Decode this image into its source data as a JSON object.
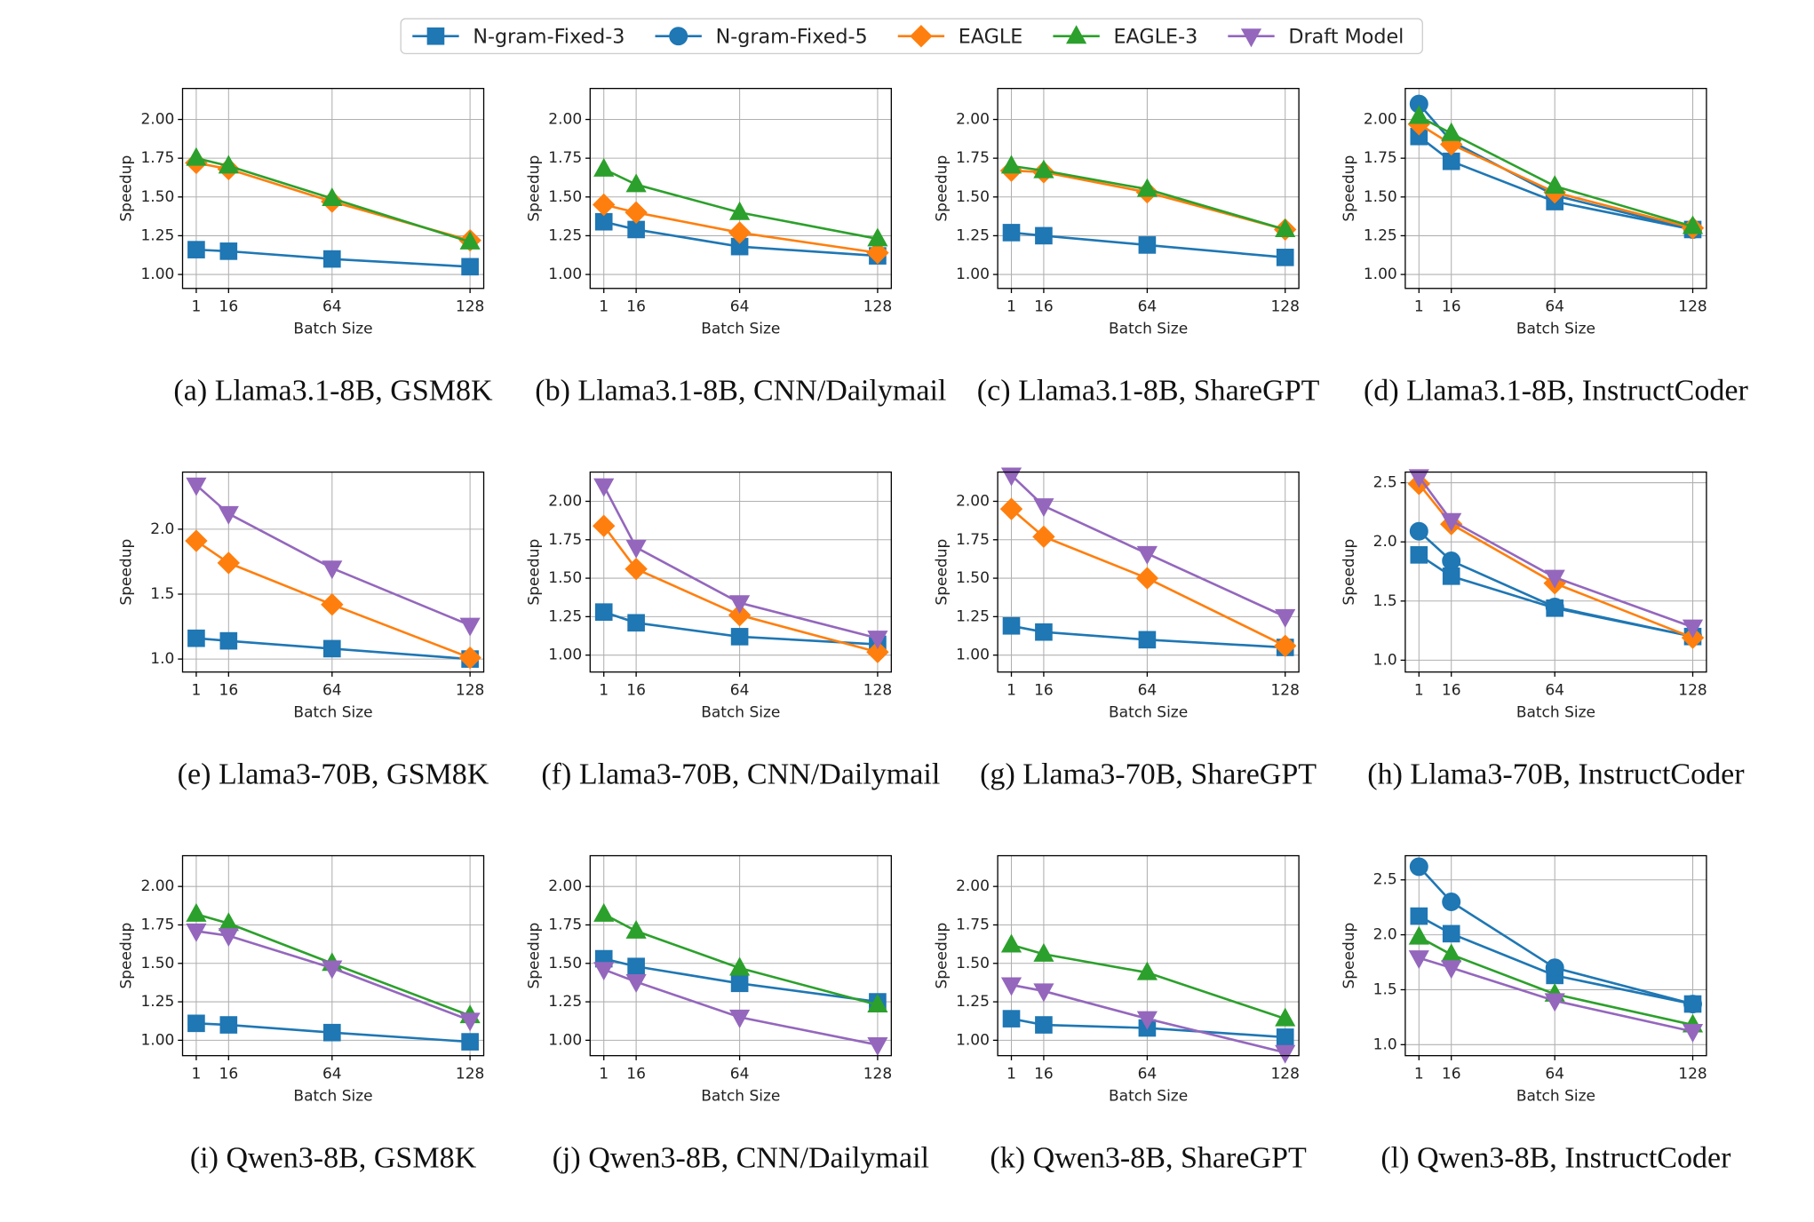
{
  "legend": {
    "entries": [
      {
        "name": "N-gram-Fixed-3",
        "color": "#1f77b4",
        "marker": "square"
      },
      {
        "name": "N-gram-Fixed-5",
        "color": "#1f77b4",
        "marker": "circle"
      },
      {
        "name": "EAGLE",
        "color": "#ff7f0e",
        "marker": "diamond"
      },
      {
        "name": "EAGLE-3",
        "color": "#2ca02c",
        "marker": "triangle-up"
      },
      {
        "name": "Draft Model",
        "color": "#9467bd",
        "marker": "triangle-down"
      }
    ]
  },
  "chart_data": [
    {
      "type": "line",
      "title": "(a) Llama3.1-8B, GSM8K",
      "x_label": "Batch Size",
      "y_label": "Speedup",
      "grid": true,
      "x": [
        1,
        16,
        64,
        128
      ],
      "xlim": [
        -5.35,
        134.35
      ],
      "xticks": [
        1,
        16,
        64,
        128
      ],
      "ylim": [
        0.91,
        2.2
      ],
      "yticks": [
        {
          "value": 1,
          "label": "1.00"
        },
        1.25,
        {
          "value": 1.5,
          "label": "1.50"
        },
        1.75,
        {
          "value": 2,
          "label": "2.00"
        }
      ],
      "series": [
        {
          "name": "N-gram-Fixed-3",
          "values": [
            1.16,
            1.15,
            1.1,
            1.05
          ]
        },
        {
          "name": "EAGLE",
          "values": [
            1.72,
            1.68,
            1.47,
            1.22
          ]
        },
        {
          "name": "EAGLE-3",
          "values": [
            1.75,
            1.7,
            1.49,
            1.21
          ]
        }
      ]
    },
    {
      "type": "line",
      "title": "(b) Llama3.1-8B, CNN/Dailymail",
      "x_label": "Batch Size",
      "y_label": "Speedup",
      "grid": true,
      "x": [
        1,
        16,
        64,
        128
      ],
      "xlim": [
        -5.35,
        134.35
      ],
      "xticks": [
        1,
        16,
        64,
        128
      ],
      "ylim": [
        0.91,
        2.2
      ],
      "yticks": [
        {
          "value": 1,
          "label": "1.00"
        },
        1.25,
        {
          "value": 1.5,
          "label": "1.50"
        },
        1.75,
        {
          "value": 2,
          "label": "2.00"
        }
      ],
      "series": [
        {
          "name": "N-gram-Fixed-3",
          "values": [
            1.34,
            1.29,
            1.18,
            1.12
          ]
        },
        {
          "name": "EAGLE",
          "values": [
            1.45,
            1.4,
            1.27,
            1.14
          ]
        },
        {
          "name": "EAGLE-3",
          "values": [
            1.68,
            1.58,
            1.4,
            1.23
          ]
        }
      ]
    },
    {
      "type": "line",
      "title": "(c) Llama3.1-8B, ShareGPT",
      "x_label": "Batch Size",
      "y_label": "Speedup",
      "grid": true,
      "x": [
        1,
        16,
        64,
        128
      ],
      "xlim": [
        -5.35,
        134.35
      ],
      "xticks": [
        1,
        16,
        64,
        128
      ],
      "ylim": [
        0.91,
        2.2
      ],
      "yticks": [
        {
          "value": 1,
          "label": "1.00"
        },
        1.25,
        {
          "value": 1.5,
          "label": "1.50"
        },
        1.75,
        {
          "value": 2,
          "label": "2.00"
        }
      ],
      "series": [
        {
          "name": "N-gram-Fixed-3",
          "values": [
            1.27,
            1.25,
            1.19,
            1.11
          ]
        },
        {
          "name": "EAGLE",
          "values": [
            1.67,
            1.66,
            1.53,
            1.29
          ]
        },
        {
          "name": "EAGLE-3",
          "values": [
            1.7,
            1.67,
            1.55,
            1.29
          ]
        }
      ]
    },
    {
      "type": "line",
      "title": "(d) Llama3.1-8B, InstructCoder",
      "x_label": "Batch Size",
      "y_label": "Speedup",
      "grid": true,
      "x": [
        1,
        16,
        64,
        128
      ],
      "xlim": [
        -5.35,
        134.35
      ],
      "xticks": [
        1,
        16,
        64,
        128
      ],
      "ylim": [
        0.91,
        2.2
      ],
      "yticks": [
        {
          "value": 1,
          "label": "1.00"
        },
        1.25,
        {
          "value": 1.5,
          "label": "1.50"
        },
        1.75,
        {
          "value": 2,
          "label": "2.00"
        }
      ],
      "series": [
        {
          "name": "N-gram-Fixed-3",
          "values": [
            1.89,
            1.73,
            1.47,
            1.29
          ]
        },
        {
          "name": "N-gram-Fixed-5",
          "values": [
            2.1,
            1.86,
            1.51,
            1.29
          ]
        },
        {
          "name": "EAGLE",
          "values": [
            1.97,
            1.84,
            1.53,
            1.3
          ]
        },
        {
          "name": "EAGLE-3",
          "values": [
            2.02,
            1.91,
            1.57,
            1.31
          ]
        }
      ]
    },
    {
      "type": "line",
      "title": "(e) Llama3-70B, GSM8K",
      "x_label": "Batch Size",
      "y_label": "Speedup",
      "grid": true,
      "x": [
        1,
        16,
        64,
        128
      ],
      "xlim": [
        -5.35,
        134.35
      ],
      "xticks": [
        1,
        16,
        64,
        128
      ],
      "ylim": [
        0.9,
        2.44
      ],
      "yticks": [
        {
          "value": 1,
          "label": "1.0"
        },
        1.5,
        {
          "value": 2,
          "label": "2.0"
        }
      ],
      "series": [
        {
          "name": "N-gram-Fixed-3",
          "values": [
            1.16,
            1.14,
            1.08,
            1.0
          ]
        },
        {
          "name": "EAGLE",
          "values": [
            1.91,
            1.74,
            1.42,
            1.01
          ]
        },
        {
          "name": "Draft Model",
          "values": [
            2.34,
            2.12,
            1.7,
            1.26
          ]
        }
      ]
    },
    {
      "type": "line",
      "title": "(f) Llama3-70B, CNN/Dailymail",
      "x_label": "Batch Size",
      "y_label": "Speedup",
      "grid": true,
      "x": [
        1,
        16,
        64,
        128
      ],
      "xlim": [
        -5.35,
        134.35
      ],
      "xticks": [
        1,
        16,
        64,
        128
      ],
      "ylim": [
        0.89,
        2.19
      ],
      "yticks": [
        {
          "value": 1,
          "label": "1.00"
        },
        1.25,
        {
          "value": 1.5,
          "label": "1.50"
        },
        1.75,
        {
          "value": 2,
          "label": "2.00"
        }
      ],
      "series": [
        {
          "name": "N-gram-Fixed-3",
          "values": [
            1.28,
            1.21,
            1.12,
            1.07
          ]
        },
        {
          "name": "EAGLE",
          "values": [
            1.84,
            1.56,
            1.26,
            1.02
          ]
        },
        {
          "name": "Draft Model",
          "values": [
            2.1,
            1.7,
            1.34,
            1.11
          ]
        }
      ]
    },
    {
      "type": "line",
      "title": "(g) Llama3-70B, ShareGPT",
      "x_label": "Batch Size",
      "y_label": "Speedup",
      "grid": true,
      "x": [
        1,
        16,
        64,
        128
      ],
      "xlim": [
        -5.35,
        134.35
      ],
      "xticks": [
        1,
        16,
        64,
        128
      ],
      "ylim": [
        0.89,
        2.19
      ],
      "yticks": [
        {
          "value": 1,
          "label": "1.00"
        },
        1.25,
        {
          "value": 1.5,
          "label": "1.50"
        },
        1.75,
        {
          "value": 2,
          "label": "2.00"
        }
      ],
      "series": [
        {
          "name": "N-gram-Fixed-3",
          "values": [
            1.19,
            1.15,
            1.1,
            1.05
          ]
        },
        {
          "name": "EAGLE",
          "values": [
            1.95,
            1.77,
            1.5,
            1.06
          ]
        },
        {
          "name": "Draft Model",
          "values": [
            2.17,
            1.97,
            1.66,
            1.25
          ]
        }
      ]
    },
    {
      "type": "line",
      "title": "(h) Llama3-70B, InstructCoder",
      "x_label": "Batch Size",
      "y_label": "Speedup",
      "grid": true,
      "x": [
        1,
        16,
        64,
        128
      ],
      "xlim": [
        -5.35,
        134.35
      ],
      "xticks": [
        1,
        16,
        64,
        128
      ],
      "ylim": [
        0.9,
        2.59
      ],
      "yticks": [
        {
          "value": 1,
          "label": "1.0"
        },
        1.5,
        {
          "value": 2,
          "label": "2.0"
        },
        2.5
      ],
      "series": [
        {
          "name": "N-gram-Fixed-3",
          "values": [
            1.89,
            1.71,
            1.44,
            1.2
          ]
        },
        {
          "name": "N-gram-Fixed-5",
          "values": [
            2.09,
            1.84,
            1.45,
            1.2
          ]
        },
        {
          "name": "EAGLE",
          "values": [
            2.49,
            2.15,
            1.65,
            1.19
          ]
        },
        {
          "name": "Draft Model",
          "values": [
            2.55,
            2.18,
            1.7,
            1.28
          ]
        }
      ]
    },
    {
      "type": "line",
      "title": "(i) Qwen3-8B, GSM8K",
      "x_label": "Batch Size",
      "y_label": "Speedup",
      "grid": true,
      "x": [
        1,
        16,
        64,
        128
      ],
      "xlim": [
        -5.35,
        134.35
      ],
      "xticks": [
        1,
        16,
        64,
        128
      ],
      "ylim": [
        0.9,
        2.2
      ],
      "yticks": [
        {
          "value": 1,
          "label": "1.00"
        },
        1.25,
        {
          "value": 1.5,
          "label": "1.50"
        },
        1.75,
        {
          "value": 2,
          "label": "2.00"
        }
      ],
      "series": [
        {
          "name": "N-gram-Fixed-3",
          "values": [
            1.11,
            1.1,
            1.05,
            0.99
          ]
        },
        {
          "name": "EAGLE-3",
          "values": [
            1.82,
            1.76,
            1.5,
            1.16
          ]
        },
        {
          "name": "Draft Model",
          "values": [
            1.71,
            1.68,
            1.47,
            1.13
          ]
        }
      ]
    },
    {
      "type": "line",
      "title": "(j) Qwen3-8B, CNN/Dailymail",
      "x_label": "Batch Size",
      "y_label": "Speedup",
      "grid": true,
      "x": [
        1,
        16,
        64,
        128
      ],
      "xlim": [
        -5.35,
        134.35
      ],
      "xticks": [
        1,
        16,
        64,
        128
      ],
      "ylim": [
        0.9,
        2.2
      ],
      "yticks": [
        {
          "value": 1,
          "label": "1.00"
        },
        1.25,
        {
          "value": 1.5,
          "label": "1.50"
        },
        1.75,
        {
          "value": 2,
          "label": "2.00"
        }
      ],
      "series": [
        {
          "name": "N-gram-Fixed-3",
          "values": [
            1.53,
            1.48,
            1.37,
            1.25
          ]
        },
        {
          "name": "EAGLE-3",
          "values": [
            1.82,
            1.71,
            1.47,
            1.23
          ]
        },
        {
          "name": "Draft Model",
          "values": [
            1.46,
            1.38,
            1.15,
            0.97
          ]
        }
      ]
    },
    {
      "type": "line",
      "title": "(k) Qwen3-8B, ShareGPT",
      "x_label": "Batch Size",
      "y_label": "Speedup",
      "grid": true,
      "x": [
        1,
        16,
        64,
        128
      ],
      "xlim": [
        -5.35,
        134.35
      ],
      "xticks": [
        1,
        16,
        64,
        128
      ],
      "ylim": [
        0.9,
        2.2
      ],
      "yticks": [
        {
          "value": 1,
          "label": "1.00"
        },
        1.25,
        {
          "value": 1.5,
          "label": "1.50"
        },
        1.75,
        {
          "value": 2,
          "label": "2.00"
        }
      ],
      "series": [
        {
          "name": "N-gram-Fixed-3",
          "values": [
            1.14,
            1.1,
            1.08,
            1.02
          ]
        },
        {
          "name": "EAGLE-3",
          "values": [
            1.62,
            1.56,
            1.44,
            1.14
          ]
        },
        {
          "name": "Draft Model",
          "values": [
            1.36,
            1.32,
            1.14,
            0.92
          ]
        }
      ]
    },
    {
      "type": "line",
      "title": "(l) Qwen3-8B, InstructCoder",
      "x_label": "Batch Size",
      "y_label": "Speedup",
      "grid": true,
      "x": [
        1,
        16,
        64,
        128
      ],
      "xlim": [
        -5.35,
        134.35
      ],
      "xticks": [
        1,
        16,
        64,
        128
      ],
      "ylim": [
        0.9,
        2.72
      ],
      "yticks": [
        {
          "value": 1,
          "label": "1.0"
        },
        1.5,
        {
          "value": 2,
          "label": "2.0"
        },
        2.5
      ],
      "series": [
        {
          "name": "N-gram-Fixed-3",
          "values": [
            2.17,
            2.01,
            1.63,
            1.37
          ]
        },
        {
          "name": "N-gram-Fixed-5",
          "values": [
            2.62,
            2.3,
            1.7,
            1.37
          ]
        },
        {
          "name": "EAGLE-3",
          "values": [
            1.98,
            1.82,
            1.46,
            1.18
          ]
        },
        {
          "name": "Draft Model",
          "values": [
            1.79,
            1.7,
            1.4,
            1.12
          ]
        }
      ]
    }
  ]
}
